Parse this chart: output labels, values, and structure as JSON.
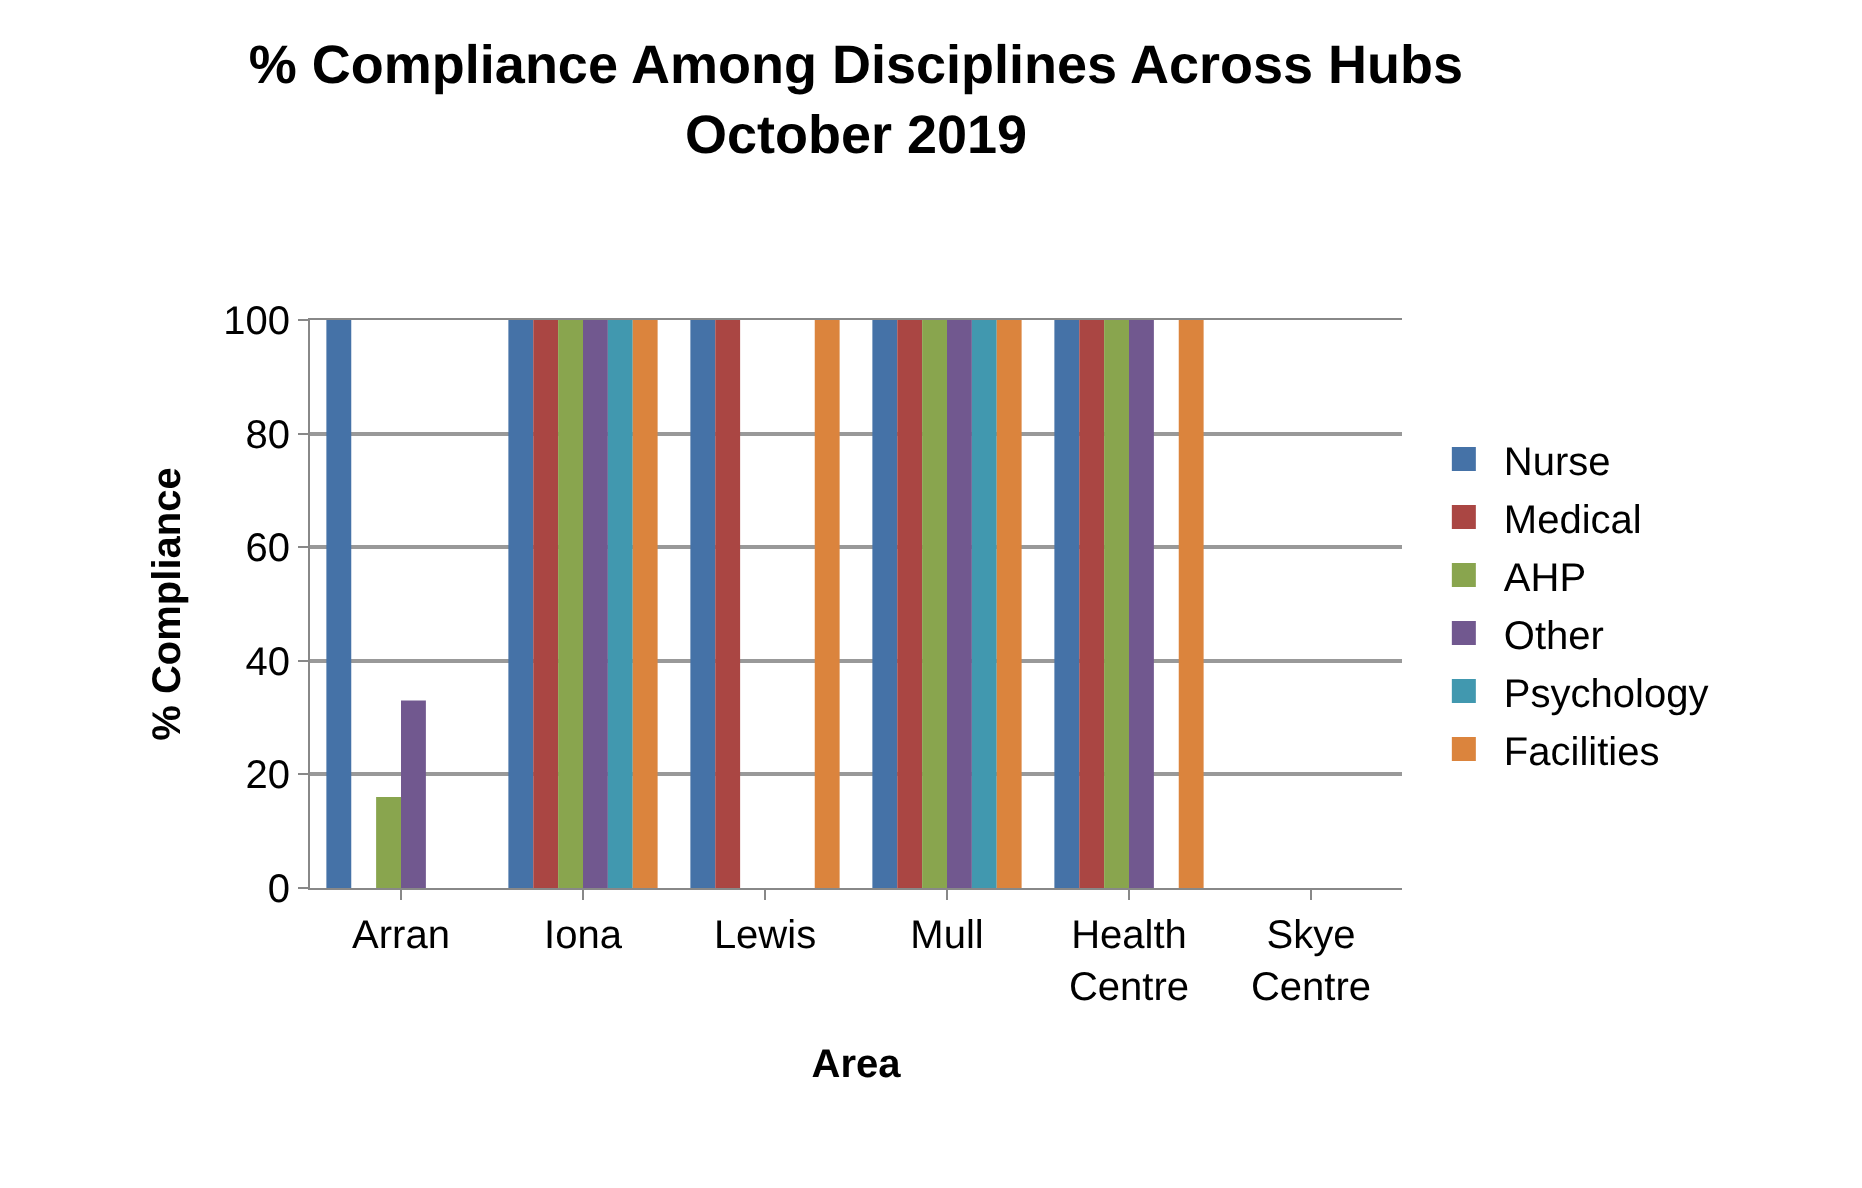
{
  "chart_data": {
    "type": "bar",
    "title": "% Compliance Among Disciplines Across Hubs\nOctober 2019",
    "xlabel": "Area",
    "ylabel": "% Compliance",
    "categories": [
      "Arran",
      "Iona",
      "Lewis",
      "Mull",
      "Health Centre",
      "Skye Centre"
    ],
    "series": [
      {
        "name": "Nurse",
        "color": "#4572a7",
        "values": [
          100,
          100,
          100,
          100,
          100,
          null
        ]
      },
      {
        "name": "Medical",
        "color": "#aa4643",
        "values": [
          null,
          100,
          100,
          100,
          100,
          null
        ]
      },
      {
        "name": "AHP",
        "color": "#89a54e",
        "values": [
          16,
          100,
          null,
          100,
          100,
          null
        ]
      },
      {
        "name": "Other",
        "color": "#71588f",
        "values": [
          33,
          100,
          null,
          100,
          100,
          null
        ]
      },
      {
        "name": "Psychology",
        "color": "#4198af",
        "values": [
          0,
          100,
          null,
          100,
          null,
          null
        ]
      },
      {
        "name": "Facilities",
        "color": "#db843d",
        "values": [
          0,
          100,
          100,
          100,
          100,
          null
        ]
      }
    ],
    "ylim": [
      0,
      100
    ],
    "yticks": [
      0,
      20,
      40,
      60,
      80,
      100
    ],
    "grid": "y",
    "legend": "right"
  }
}
